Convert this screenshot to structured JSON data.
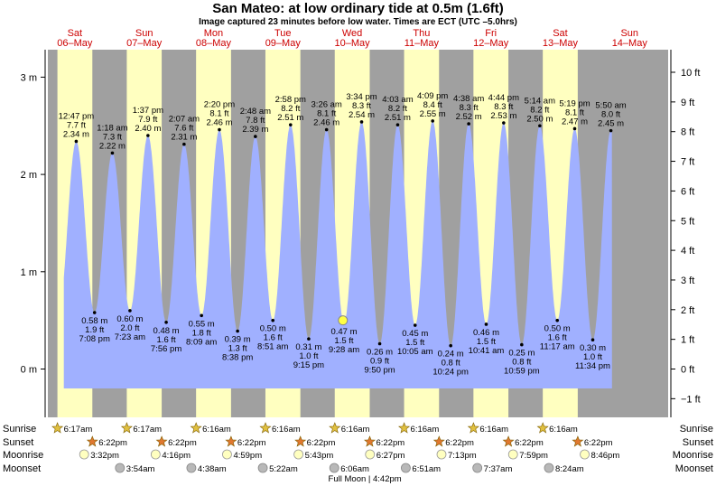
{
  "title": "San Mateo: at low  ordinary tide at 0.5m (1.6ft)",
  "subtitle": "Image captured 23 minutes before low water. Times are ECT (UTC –5.0hrs)",
  "colors": {
    "night": "#a0a0a0",
    "day": "#ffffc0",
    "water": "#a0b0ff",
    "day_label": "#cc0000",
    "text": "#000000",
    "current_marker": "#ffff44"
  },
  "chart_data": {
    "type": "area",
    "x_unit": "date/time (ECT)",
    "y_unit_left": "m",
    "y_unit_right": "ft",
    "ylim_m": [
      -0.42,
      3.27
    ],
    "left_ticks": [
      "3 m",
      "2 m",
      "1 m",
      "0 m"
    ],
    "left_tick_values": [
      3,
      2,
      1,
      0
    ],
    "right_ticks": [
      "10 ft",
      "9 ft",
      "8 ft",
      "7 ft",
      "6 ft",
      "5 ft",
      "4 ft",
      "3 ft",
      "2 ft",
      "1 ft",
      "0 ft",
      "−1 ft"
    ],
    "right_tick_values": [
      10,
      9,
      8,
      7,
      6,
      5,
      4,
      3,
      2,
      1,
      0,
      -1
    ],
    "grid": false,
    "days": [
      {
        "dow": "Sat",
        "date": "06–May"
      },
      {
        "dow": "Sun",
        "date": "07–May"
      },
      {
        "dow": "Mon",
        "date": "08–May"
      },
      {
        "dow": "Tue",
        "date": "09–May"
      },
      {
        "dow": "Wed",
        "date": "10–May"
      },
      {
        "dow": "Thu",
        "date": "11–May"
      },
      {
        "dow": "Fri",
        "date": "12–May"
      },
      {
        "dow": "Sat",
        "date": "13–May"
      },
      {
        "dow": "Sun",
        "date": "14–May"
      }
    ],
    "day_start_hours": [
      6.283,
      30.283,
      54.267,
      78.267,
      102.267,
      126.267,
      150.267,
      174.267
    ],
    "day_end_hours": [
      18.367,
      42.367,
      66.367,
      90.367,
      114.367,
      138.367,
      162.367,
      186.367
    ],
    "tides": [
      {
        "type": "high",
        "hour": 12.783,
        "m": 2.34,
        "time": "12:47 pm",
        "ft": "7.7 ft",
        "height": "2.34 m"
      },
      {
        "type": "low",
        "hour": 19.133,
        "m": 0.58,
        "time": "7:08 pm",
        "ft": "1.9 ft",
        "height": "0.58 m"
      },
      {
        "type": "high",
        "hour": 25.3,
        "m": 2.22,
        "time": "1:18 am",
        "ft": "7.3 ft",
        "height": "2.22 m"
      },
      {
        "type": "low",
        "hour": 31.383,
        "m": 0.6,
        "time": "7:23 am",
        "ft": "2.0 ft",
        "height": "0.60 m"
      },
      {
        "type": "high",
        "hour": 37.617,
        "m": 2.4,
        "time": "1:37 pm",
        "ft": "7.9 ft",
        "height": "2.40 m"
      },
      {
        "type": "low",
        "hour": 43.933,
        "m": 0.48,
        "time": "7:56 pm",
        "ft": "1.6 ft",
        "height": "0.48 m"
      },
      {
        "type": "high",
        "hour": 50.117,
        "m": 2.31,
        "time": "2:07 am",
        "ft": "7.6 ft",
        "height": "2.31 m"
      },
      {
        "type": "low",
        "hour": 56.15,
        "m": 0.55,
        "time": "8:09 am",
        "ft": "1.8 ft",
        "height": "0.55 m"
      },
      {
        "type": "high",
        "hour": 62.333,
        "m": 2.46,
        "time": "2:20 pm",
        "ft": "8.1 ft",
        "height": "2.46 m"
      },
      {
        "type": "low",
        "hour": 68.633,
        "m": 0.39,
        "time": "8:38 pm",
        "ft": "1.3 ft",
        "height": "0.39 m"
      },
      {
        "type": "high",
        "hour": 74.8,
        "m": 2.39,
        "time": "2:48 am",
        "ft": "7.8 ft",
        "height": "2.39 m"
      },
      {
        "type": "low",
        "hour": 80.85,
        "m": 0.5,
        "time": "8:51 am",
        "ft": "1.6 ft",
        "height": "0.50 m"
      },
      {
        "type": "high",
        "hour": 86.967,
        "m": 2.51,
        "time": "2:58 pm",
        "ft": "8.2 ft",
        "height": "2.51 m"
      },
      {
        "type": "low",
        "hour": 93.25,
        "m": 0.31,
        "time": "9:15 pm",
        "ft": "1.0 ft",
        "height": "0.31 m"
      },
      {
        "type": "high",
        "hour": 99.433,
        "m": 2.46,
        "time": "3:26 am",
        "ft": "8.1 ft",
        "height": "2.46 m"
      },
      {
        "type": "low",
        "hour": 105.467,
        "m": 0.47,
        "time": "9:28 am",
        "ft": "1.5 ft",
        "height": "0.47 m"
      },
      {
        "type": "high",
        "hour": 111.567,
        "m": 2.54,
        "time": "3:34 pm",
        "ft": "8.3 ft",
        "height": "2.54 m"
      },
      {
        "type": "low",
        "hour": 117.833,
        "m": 0.26,
        "time": "9:50 pm",
        "ft": "0.9 ft",
        "height": "0.26 m"
      },
      {
        "type": "high",
        "hour": 124.05,
        "m": 2.51,
        "time": "4:03 am",
        "ft": "8.2 ft",
        "height": "2.51 m"
      },
      {
        "type": "low",
        "hour": 130.083,
        "m": 0.45,
        "time": "10:05 am",
        "ft": "1.5 ft",
        "height": "0.45 m"
      },
      {
        "type": "high",
        "hour": 136.15,
        "m": 2.55,
        "time": "4:09 pm",
        "ft": "8.4 ft",
        "height": "2.55 m"
      },
      {
        "type": "low",
        "hour": 142.4,
        "m": 0.24,
        "time": "10:24 pm",
        "ft": "0.8 ft",
        "height": "0.24 m"
      },
      {
        "type": "high",
        "hour": 148.633,
        "m": 2.52,
        "time": "4:38 am",
        "ft": "8.3 ft",
        "height": "2.52 m"
      },
      {
        "type": "low",
        "hour": 154.683,
        "m": 0.46,
        "time": "10:41 am",
        "ft": "1.5 ft",
        "height": "0.46 m"
      },
      {
        "type": "high",
        "hour": 160.733,
        "m": 2.53,
        "time": "4:44 pm",
        "ft": "8.3 ft",
        "height": "2.53 m"
      },
      {
        "type": "low",
        "hour": 166.983,
        "m": 0.25,
        "time": "10:59 pm",
        "ft": "0.8 ft",
        "height": "0.25 m"
      },
      {
        "type": "high",
        "hour": 173.233,
        "m": 2.5,
        "time": "5:14 am",
        "ft": "8.2 ft",
        "height": "2.50 m"
      },
      {
        "type": "low",
        "hour": 179.283,
        "m": 0.5,
        "time": "11:17 am",
        "ft": "1.6 ft",
        "height": "0.50 m"
      },
      {
        "type": "high",
        "hour": 185.317,
        "m": 2.47,
        "time": "5:19 pm",
        "ft": "8.1 ft",
        "height": "2.47 m"
      },
      {
        "type": "low",
        "hour": 191.567,
        "m": 0.3,
        "time": "11:34 pm",
        "ft": "1.0 ft",
        "height": "0.30 m"
      },
      {
        "type": "high",
        "hour": 197.833,
        "m": 2.45,
        "time": "5:50 am",
        "ft": "8.0 ft",
        "height": "2.45 m"
      }
    ],
    "current": {
      "hour": 105.083,
      "m": 0.5
    },
    "almanac": {
      "row_labels": [
        "Sunrise",
        "Sunset",
        "Moonrise",
        "Moonset"
      ],
      "sunrise": [
        {
          "hour": 6.283,
          "label": "6:17am"
        },
        {
          "hour": 30.283,
          "label": "6:17am"
        },
        {
          "hour": 54.267,
          "label": "6:16am"
        },
        {
          "hour": 78.267,
          "label": "6:16am"
        },
        {
          "hour": 102.267,
          "label": "6:16am"
        },
        {
          "hour": 126.267,
          "label": "6:16am"
        },
        {
          "hour": 150.267,
          "label": "6:16am"
        },
        {
          "hour": 174.267,
          "label": "6:16am"
        }
      ],
      "sunset": [
        {
          "hour": 18.367,
          "label": "6:22pm"
        },
        {
          "hour": 42.367,
          "label": "6:22pm"
        },
        {
          "hour": 66.367,
          "label": "6:22pm"
        },
        {
          "hour": 90.367,
          "label": "6:22pm"
        },
        {
          "hour": 114.367,
          "label": "6:22pm"
        },
        {
          "hour": 138.367,
          "label": "6:22pm"
        },
        {
          "hour": 162.367,
          "label": "6:22pm"
        },
        {
          "hour": 186.367,
          "label": "6:22pm"
        }
      ],
      "moonrise": [
        {
          "hour": 15.533,
          "label": "3:32pm"
        },
        {
          "hour": 40.267,
          "label": "4:16pm"
        },
        {
          "hour": 64.983,
          "label": "4:59pm"
        },
        {
          "hour": 89.717,
          "label": "5:43pm"
        },
        {
          "hour": 114.45,
          "label": "6:27pm"
        },
        {
          "hour": 139.217,
          "label": "7:13pm"
        },
        {
          "hour": 163.983,
          "label": "7:59pm"
        },
        {
          "hour": 188.767,
          "label": "8:46pm"
        }
      ],
      "moonset": [
        {
          "hour": 27.9,
          "label": "3:54am"
        },
        {
          "hour": 52.633,
          "label": "4:38am"
        },
        {
          "hour": 77.367,
          "label": "5:22am"
        },
        {
          "hour": 102.1,
          "label": "6:06am"
        },
        {
          "hour": 126.85,
          "label": "6:51am"
        },
        {
          "hour": 151.617,
          "label": "7:37am"
        },
        {
          "hour": 176.4,
          "label": "8:24am"
        }
      ],
      "note": "Full Moon | 4:42pm",
      "note_hour": 112.7
    }
  }
}
